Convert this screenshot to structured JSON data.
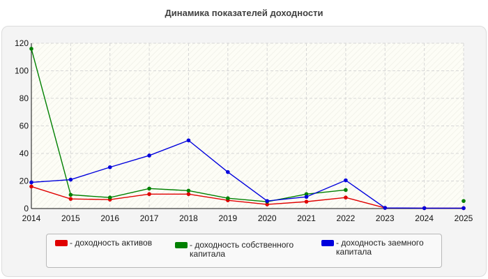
{
  "chart_data": {
    "type": "line",
    "title": "Динамика показателей доходности",
    "xlabel": "",
    "ylabel": "",
    "x": [
      "2014",
      "2015",
      "2016",
      "2017",
      "2018",
      "2019",
      "2020",
      "2021",
      "2022",
      "2023",
      "2024",
      "2025"
    ],
    "ylim": [
      0,
      120
    ],
    "yticks": [
      0,
      20,
      40,
      60,
      80,
      100,
      120
    ],
    "grid": true,
    "legend_position": "bottom",
    "series": [
      {
        "name": "- доходность активов",
        "color": "#e00000",
        "values": [
          16,
          7,
          6.5,
          10.5,
          10.5,
          6,
          3,
          5,
          8,
          0.5,
          0.3,
          0.3
        ]
      },
      {
        "name": "- доходность собственного капитала",
        "color": "#008000",
        "values": [
          116,
          10,
          8,
          14.5,
          13,
          7.5,
          5,
          10.5,
          13.5,
          null,
          null,
          5.5
        ]
      },
      {
        "name": "- доходность заемного капитала",
        "color": "#0000dd",
        "values": [
          19,
          21,
          30,
          38.5,
          49.5,
          26.5,
          5.5,
          8.5,
          20.5,
          0.5,
          0.3,
          0.3
        ]
      }
    ]
  }
}
